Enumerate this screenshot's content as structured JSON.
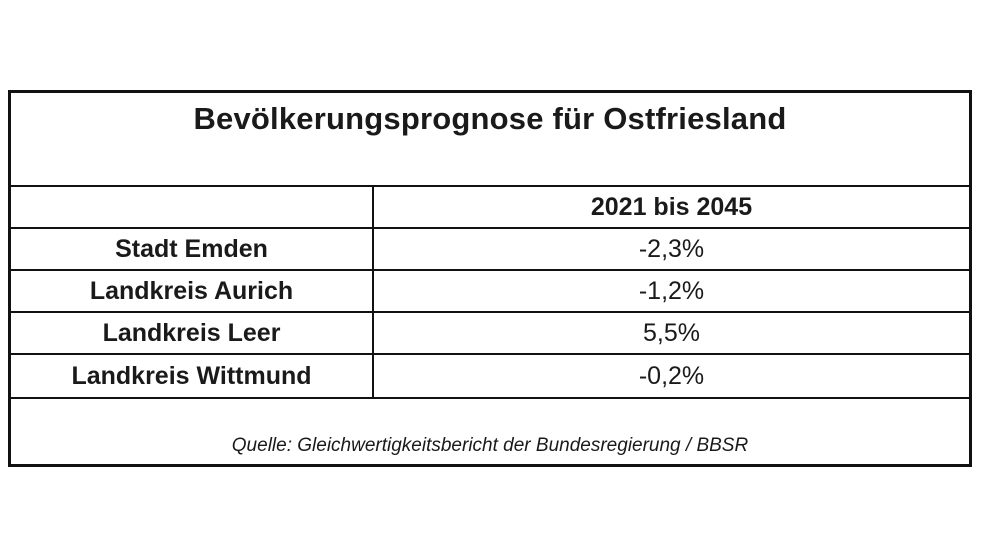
{
  "table": {
    "title": "Bevölkerungsprognose für Ostfriesland",
    "column_header": "2021 bis 2045",
    "rows": [
      {
        "label": "Stadt Emden",
        "value": "-2,3%"
      },
      {
        "label": "Landkreis Aurich",
        "value": "-1,2%"
      },
      {
        "label": "Landkreis Leer",
        "value": "5,5%"
      },
      {
        "label": "Landkreis Wittmund",
        "value": "-0,2%"
      }
    ],
    "source": "Quelle: Gleichwertigkeitsbericht der Bundesregierung / BBSR"
  }
}
